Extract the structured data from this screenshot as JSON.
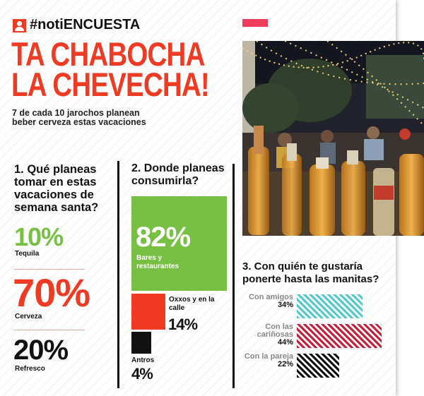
{
  "header": {
    "hashtag": "#notiENCUESTA"
  },
  "title": {
    "line1": "TA CHABOCHA",
    "line2": "LA CHEVECHA!"
  },
  "subtitle": "7 de cada 10 jarochos planean beber cerveza estas vacaciones",
  "colors": {
    "accent": "#ef3b24",
    "green": "#77c043",
    "pink": "#ef3c5d",
    "teal": "#53c9cf",
    "crimson": "#c2203c",
    "black": "#111111"
  },
  "q1": {
    "question": "1. Qué planeas tomar en estas vacaciones de semana santa?",
    "items": [
      {
        "value": "10%",
        "label": "Tequila"
      },
      {
        "value": "70%",
        "label": "Cerveza"
      },
      {
        "value": "20%",
        "label": "Refresco"
      }
    ]
  },
  "q2": {
    "question": "2. Donde planeas consumirla?",
    "items": [
      {
        "value": "82%",
        "label": "Bares y restaurantes",
        "share": 0.82
      },
      {
        "value": "14%",
        "label": "Oxxos y en la calle",
        "share": 0.14
      },
      {
        "value": "4%",
        "label": "Antros",
        "share": 0.04
      }
    ]
  },
  "q3": {
    "question": "3. Con quién te gustaría ponerte hasta las manitas?",
    "items": [
      {
        "label": "Con amigos",
        "value": "34%",
        "share": 0.34,
        "pattern_color": "#53c9cf"
      },
      {
        "label": "Con las cariñosas",
        "value": "44%",
        "share": 0.44,
        "pattern_color": "#c2203c"
      },
      {
        "label": "Con la pareja",
        "value": "22%",
        "share": 0.22,
        "pattern_color": "#111111"
      }
    ]
  },
  "photo": {
    "subject": "beer bottles on a table at a night-time outdoor plaza with string lights"
  }
}
